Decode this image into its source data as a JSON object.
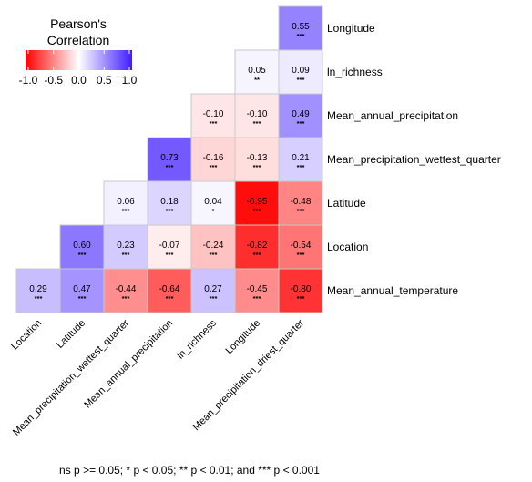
{
  "chart_data": {
    "type": "heatmap",
    "variables": [
      "Location",
      "Latitude",
      "Mean_precipitation_wettest_quarter",
      "Mean_annual_precipitation",
      "ln_richness",
      "Longitude",
      "Mean_precipitation_driest_quarter",
      "Mean_annual_temperature"
    ],
    "x_labels": [
      "Location",
      "Latitude",
      "Mean_precipitation_wettest_quarter",
      "Mean_annual_precipitation",
      "ln_richness",
      "Longitude",
      "Mean_precipitation_driest_quarter"
    ],
    "y_labels_top_to_bottom": [
      "Longitude",
      "ln_richness",
      "Mean_annual_precipitation",
      "Mean_precipitation_wettest_quarter",
      "Latitude",
      "Location",
      "Mean_annual_temperature"
    ],
    "cells": [
      {
        "x": "Mean_precipitation_driest_quarter",
        "y": "Longitude",
        "value": 0.55,
        "sig": "***"
      },
      {
        "x": "Longitude",
        "y": "ln_richness",
        "value": 0.05,
        "sig": "**"
      },
      {
        "x": "Mean_precipitation_driest_quarter",
        "y": "ln_richness",
        "value": 0.09,
        "sig": "***"
      },
      {
        "x": "ln_richness",
        "y": "Mean_annual_precipitation",
        "value": -0.1,
        "sig": "***"
      },
      {
        "x": "Longitude",
        "y": "Mean_annual_precipitation",
        "value": -0.1,
        "sig": "***"
      },
      {
        "x": "Mean_precipitation_driest_quarter",
        "y": "Mean_annual_precipitation",
        "value": 0.49,
        "sig": "***"
      },
      {
        "x": "Mean_annual_precipitation",
        "y": "Mean_precipitation_wettest_quarter",
        "value": 0.73,
        "sig": "***"
      },
      {
        "x": "ln_richness",
        "y": "Mean_precipitation_wettest_quarter",
        "value": -0.16,
        "sig": "***"
      },
      {
        "x": "Longitude",
        "y": "Mean_precipitation_wettest_quarter",
        "value": -0.13,
        "sig": "***"
      },
      {
        "x": "Mean_precipitation_driest_quarter",
        "y": "Mean_precipitation_wettest_quarter",
        "value": 0.21,
        "sig": "***"
      },
      {
        "x": "Mean_precipitation_wettest_quarter",
        "y": "Latitude",
        "value": 0.06,
        "sig": "***"
      },
      {
        "x": "Mean_annual_precipitation",
        "y": "Latitude",
        "value": 0.18,
        "sig": "***"
      },
      {
        "x": "ln_richness",
        "y": "Latitude",
        "value": 0.04,
        "sig": "*"
      },
      {
        "x": "Longitude",
        "y": "Latitude",
        "value": -0.95,
        "sig": "***"
      },
      {
        "x": "Mean_precipitation_driest_quarter",
        "y": "Latitude",
        "value": -0.48,
        "sig": "***"
      },
      {
        "x": "Latitude",
        "y": "Location",
        "value": 0.6,
        "sig": "***"
      },
      {
        "x": "Mean_precipitation_wettest_quarter",
        "y": "Location",
        "value": 0.23,
        "sig": "***"
      },
      {
        "x": "Mean_annual_precipitation",
        "y": "Location",
        "value": -0.07,
        "sig": "***"
      },
      {
        "x": "ln_richness",
        "y": "Location",
        "value": -0.24,
        "sig": "***"
      },
      {
        "x": "Longitude",
        "y": "Location",
        "value": -0.82,
        "sig": "***"
      },
      {
        "x": "Mean_precipitation_driest_quarter",
        "y": "Location",
        "value": -0.54,
        "sig": "***"
      },
      {
        "x": "Location",
        "y": "Mean_annual_temperature",
        "value": 0.29,
        "sig": "***"
      },
      {
        "x": "Latitude",
        "y": "Mean_annual_temperature",
        "value": 0.47,
        "sig": "***"
      },
      {
        "x": "Mean_precipitation_wettest_quarter",
        "y": "Mean_annual_temperature",
        "value": -0.44,
        "sig": "***"
      },
      {
        "x": "Mean_annual_precipitation",
        "y": "Mean_annual_temperature",
        "value": -0.64,
        "sig": "***"
      },
      {
        "x": "ln_richness",
        "y": "Mean_annual_temperature",
        "value": 0.27,
        "sig": "***"
      },
      {
        "x": "Longitude",
        "y": "Mean_annual_temperature",
        "value": -0.45,
        "sig": "***"
      },
      {
        "x": "Mean_precipitation_driest_quarter",
        "y": "Mean_annual_temperature",
        "value": -0.8,
        "sig": "***"
      }
    ],
    "legend": {
      "title_line1": "Pearson's",
      "title_line2": "Correlation",
      "ticks": [
        "-1.0",
        "-0.5",
        "0.0",
        "0.5",
        "1.0"
      ],
      "tick_values": [
        -1.0,
        -0.5,
        0.0,
        0.5,
        1.0
      ],
      "range": [
        -1,
        1
      ],
      "low_color": "#ff0000",
      "mid_color": "#ffffff",
      "high_color": "#3f1cff",
      "placement": "top-left"
    },
    "caption": "ns p >= 0.05; * p < 0.05; ** p < 0.01; and *** p < 0.001"
  }
}
